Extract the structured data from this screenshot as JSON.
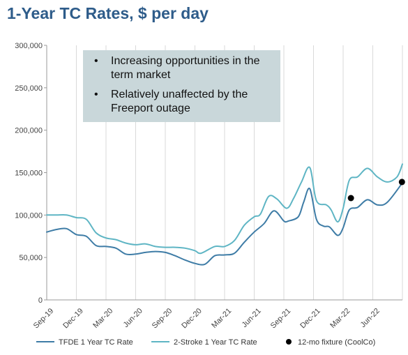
{
  "chart_data": {
    "type": "line",
    "title": "1-Year TC Rates, $ per day",
    "ylim": [
      0,
      300000
    ],
    "yticks": [
      "0",
      "50,000",
      "100,000",
      "150,000",
      "200,000",
      "250,000",
      "300,000"
    ],
    "ytick_values": [
      0,
      50000,
      100000,
      150000,
      200000,
      250000,
      300000
    ],
    "xlim": [
      "2019-09",
      "2022-09"
    ],
    "xticks": [
      "Sep-19",
      "Dec-19",
      "Mar-20",
      "Jun-20",
      "Sep-20",
      "Dec-20",
      "Mar-21",
      "Jun-21",
      "Sep-21",
      "Dec-21",
      "Mar-22",
      "Jun-22"
    ],
    "grid": "vertical",
    "legend_position": "bottom",
    "series": [
      {
        "name": "TFDE 1 Year TC Rate",
        "color": "#3e7ca6",
        "points": [
          [
            "2019-09-01",
            80000
          ],
          [
            "2019-10-01",
            83000
          ],
          [
            "2019-11-01",
            84000
          ],
          [
            "2019-12-01",
            77000
          ],
          [
            "2020-01-01",
            75000
          ],
          [
            "2020-02-01",
            64000
          ],
          [
            "2020-03-01",
            63000
          ],
          [
            "2020-04-01",
            61000
          ],
          [
            "2020-05-01",
            54000
          ],
          [
            "2020-06-01",
            54000
          ],
          [
            "2020-07-01",
            56000
          ],
          [
            "2020-08-01",
            57000
          ],
          [
            "2020-09-01",
            56000
          ],
          [
            "2020-10-01",
            52000
          ],
          [
            "2020-11-01",
            47000
          ],
          [
            "2020-12-01",
            43000
          ],
          [
            "2021-01-01",
            42000
          ],
          [
            "2021-02-01",
            52000
          ],
          [
            "2021-03-01",
            53000
          ],
          [
            "2021-04-01",
            55000
          ],
          [
            "2021-05-01",
            68000
          ],
          [
            "2021-06-01",
            80000
          ],
          [
            "2021-07-01",
            90000
          ],
          [
            "2021-08-01",
            105000
          ],
          [
            "2021-09-01",
            93000
          ],
          [
            "2021-09-15",
            93000
          ],
          [
            "2021-10-15",
            98000
          ],
          [
            "2021-11-01",
            115000
          ],
          [
            "2021-11-20",
            131000
          ],
          [
            "2021-12-10",
            95000
          ],
          [
            "2022-01-01",
            87000
          ],
          [
            "2022-01-20",
            86000
          ],
          [
            "2022-02-15",
            76000
          ],
          [
            "2022-03-01",
            85000
          ],
          [
            "2022-03-20",
            106000
          ],
          [
            "2022-04-15",
            109000
          ],
          [
            "2022-05-15",
            118000
          ],
          [
            "2022-06-15",
            112000
          ],
          [
            "2022-07-15",
            115000
          ],
          [
            "2022-09-01",
            138000
          ]
        ]
      },
      {
        "name": "2-Stroke 1 Year TC Rate",
        "color": "#5eb5c4",
        "points": [
          [
            "2019-09-01",
            100000
          ],
          [
            "2019-10-01",
            100000
          ],
          [
            "2019-11-01",
            100000
          ],
          [
            "2019-12-01",
            97000
          ],
          [
            "2020-01-01",
            95000
          ],
          [
            "2020-02-01",
            79000
          ],
          [
            "2020-03-01",
            73000
          ],
          [
            "2020-04-01",
            71000
          ],
          [
            "2020-05-01",
            67000
          ],
          [
            "2020-06-01",
            65000
          ],
          [
            "2020-07-01",
            66000
          ],
          [
            "2020-08-01",
            63000
          ],
          [
            "2020-09-01",
            62000
          ],
          [
            "2020-10-01",
            62000
          ],
          [
            "2020-11-01",
            61000
          ],
          [
            "2020-12-01",
            58000
          ],
          [
            "2020-12-20",
            55000
          ],
          [
            "2021-02-01",
            63000
          ],
          [
            "2021-03-01",
            63000
          ],
          [
            "2021-04-01",
            70000
          ],
          [
            "2021-05-01",
            88000
          ],
          [
            "2021-06-01",
            98000
          ],
          [
            "2021-06-20",
            101000
          ],
          [
            "2021-07-15",
            122000
          ],
          [
            "2021-08-10",
            119000
          ],
          [
            "2021-09-10",
            108000
          ],
          [
            "2021-10-01",
            120000
          ],
          [
            "2021-10-25",
            139000
          ],
          [
            "2021-11-20",
            156000
          ],
          [
            "2021-12-10",
            117000
          ],
          [
            "2022-01-10",
            112000
          ],
          [
            "2022-01-25",
            106000
          ],
          [
            "2022-02-15",
            92000
          ],
          [
            "2022-03-01",
            108000
          ],
          [
            "2022-03-20",
            141000
          ],
          [
            "2022-04-15",
            145000
          ],
          [
            "2022-05-15",
            155000
          ],
          [
            "2022-06-15",
            145000
          ],
          [
            "2022-07-15",
            139000
          ],
          [
            "2022-08-15",
            145000
          ],
          [
            "2022-09-01",
            160000
          ]
        ]
      },
      {
        "name": "12-mo fixture (CoolCo)",
        "color": "#000000",
        "marker": "dot",
        "points": [
          [
            "2022-03-25",
            120000
          ],
          [
            "2022-08-30",
            139000
          ]
        ]
      }
    ],
    "annotations": [
      "Increasing opportunities in the term market",
      "Relatively unaffected by the Freeport outage"
    ]
  }
}
